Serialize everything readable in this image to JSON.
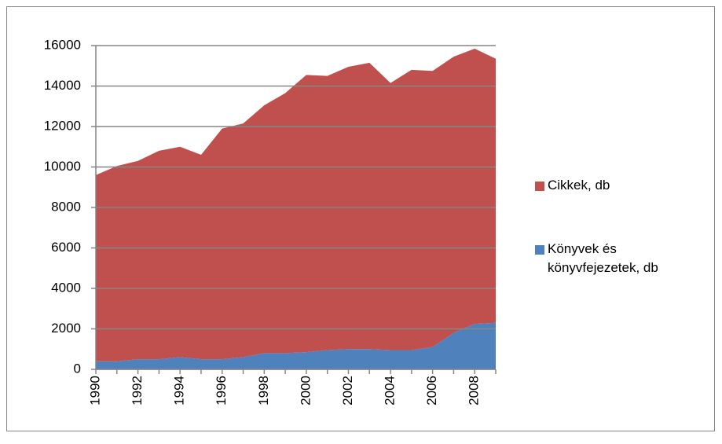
{
  "chart_data": {
    "type": "stacked_area",
    "categories": [
      "1990",
      null,
      "1992",
      null,
      "1994",
      null,
      "1996",
      null,
      "1998",
      null,
      "2000",
      null,
      "2002",
      null,
      "2004",
      null,
      "2006",
      null,
      "2008",
      null
    ],
    "series": [
      {
        "name": "Könyvek és könyvfejezetek, db",
        "color": "#4f81bd",
        "values": [
          400,
          400,
          500,
          500,
          600,
          500,
          500,
          600,
          800,
          800,
          850,
          950,
          1000,
          1000,
          950,
          950,
          1100,
          1800,
          2250,
          2300
        ]
      },
      {
        "name": "Cikkek, db",
        "color": "#c0504d",
        "values": [
          9200,
          9650,
          9800,
          10300,
          10400,
          10100,
          11400,
          11550,
          12250,
          12850,
          13700,
          13550,
          13950,
          14150,
          13200,
          13850,
          13650,
          13650,
          13600,
          13050
        ]
      }
    ],
    "ylim": [
      0,
      16000
    ],
    "yticks": [
      0,
      2000,
      4000,
      6000,
      8000,
      10000,
      12000,
      14000,
      16000
    ],
    "grid": true,
    "legend": "right"
  }
}
